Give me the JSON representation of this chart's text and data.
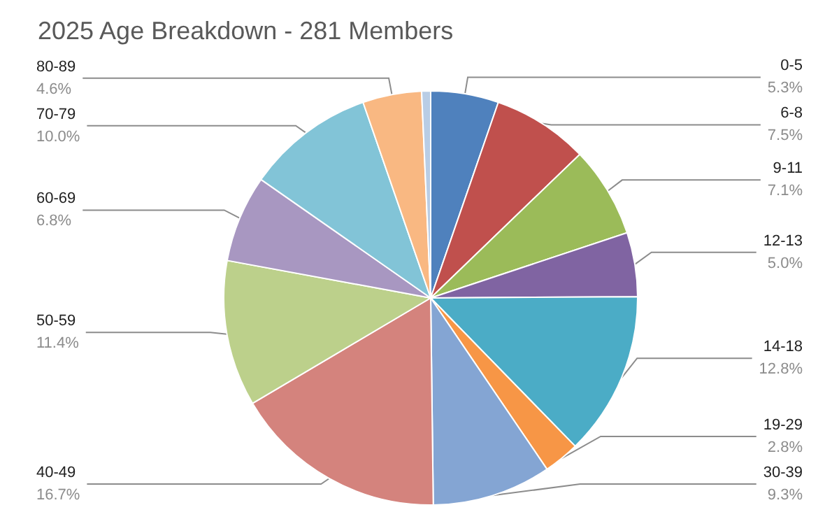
{
  "chart_data": {
    "type": "pie",
    "title": "2025 Age Breakdown - 281 Members",
    "categories": [
      "0-5",
      "6-8",
      "9-11",
      "12-13",
      "14-18",
      "19-29",
      "30-39",
      "40-49",
      "50-59",
      "60-69",
      "70-79",
      "80-89",
      null
    ],
    "values": [
      5.3,
      7.5,
      7.1,
      5.0,
      12.8,
      2.8,
      9.3,
      16.7,
      11.4,
      6.8,
      10.0,
      4.6,
      0.7
    ],
    "value_labels": [
      "5.3%",
      "7.5%",
      "7.1%",
      "5.0%",
      "12.8%",
      "2.8%",
      "9.3%",
      "16.7%",
      "11.4%",
      "6.8%",
      "10.0%",
      "4.6%",
      null
    ],
    "colors": [
      "#4f81bd",
      "#c0504d",
      "#9bbb59",
      "#8064a2",
      "#4bacc6",
      "#f79646",
      "#84a5d3",
      "#d4837d",
      "#bcd08b",
      "#a897c1",
      "#82c4d7",
      "#f9b882",
      "#b9cde5"
    ],
    "legend": false
  }
}
